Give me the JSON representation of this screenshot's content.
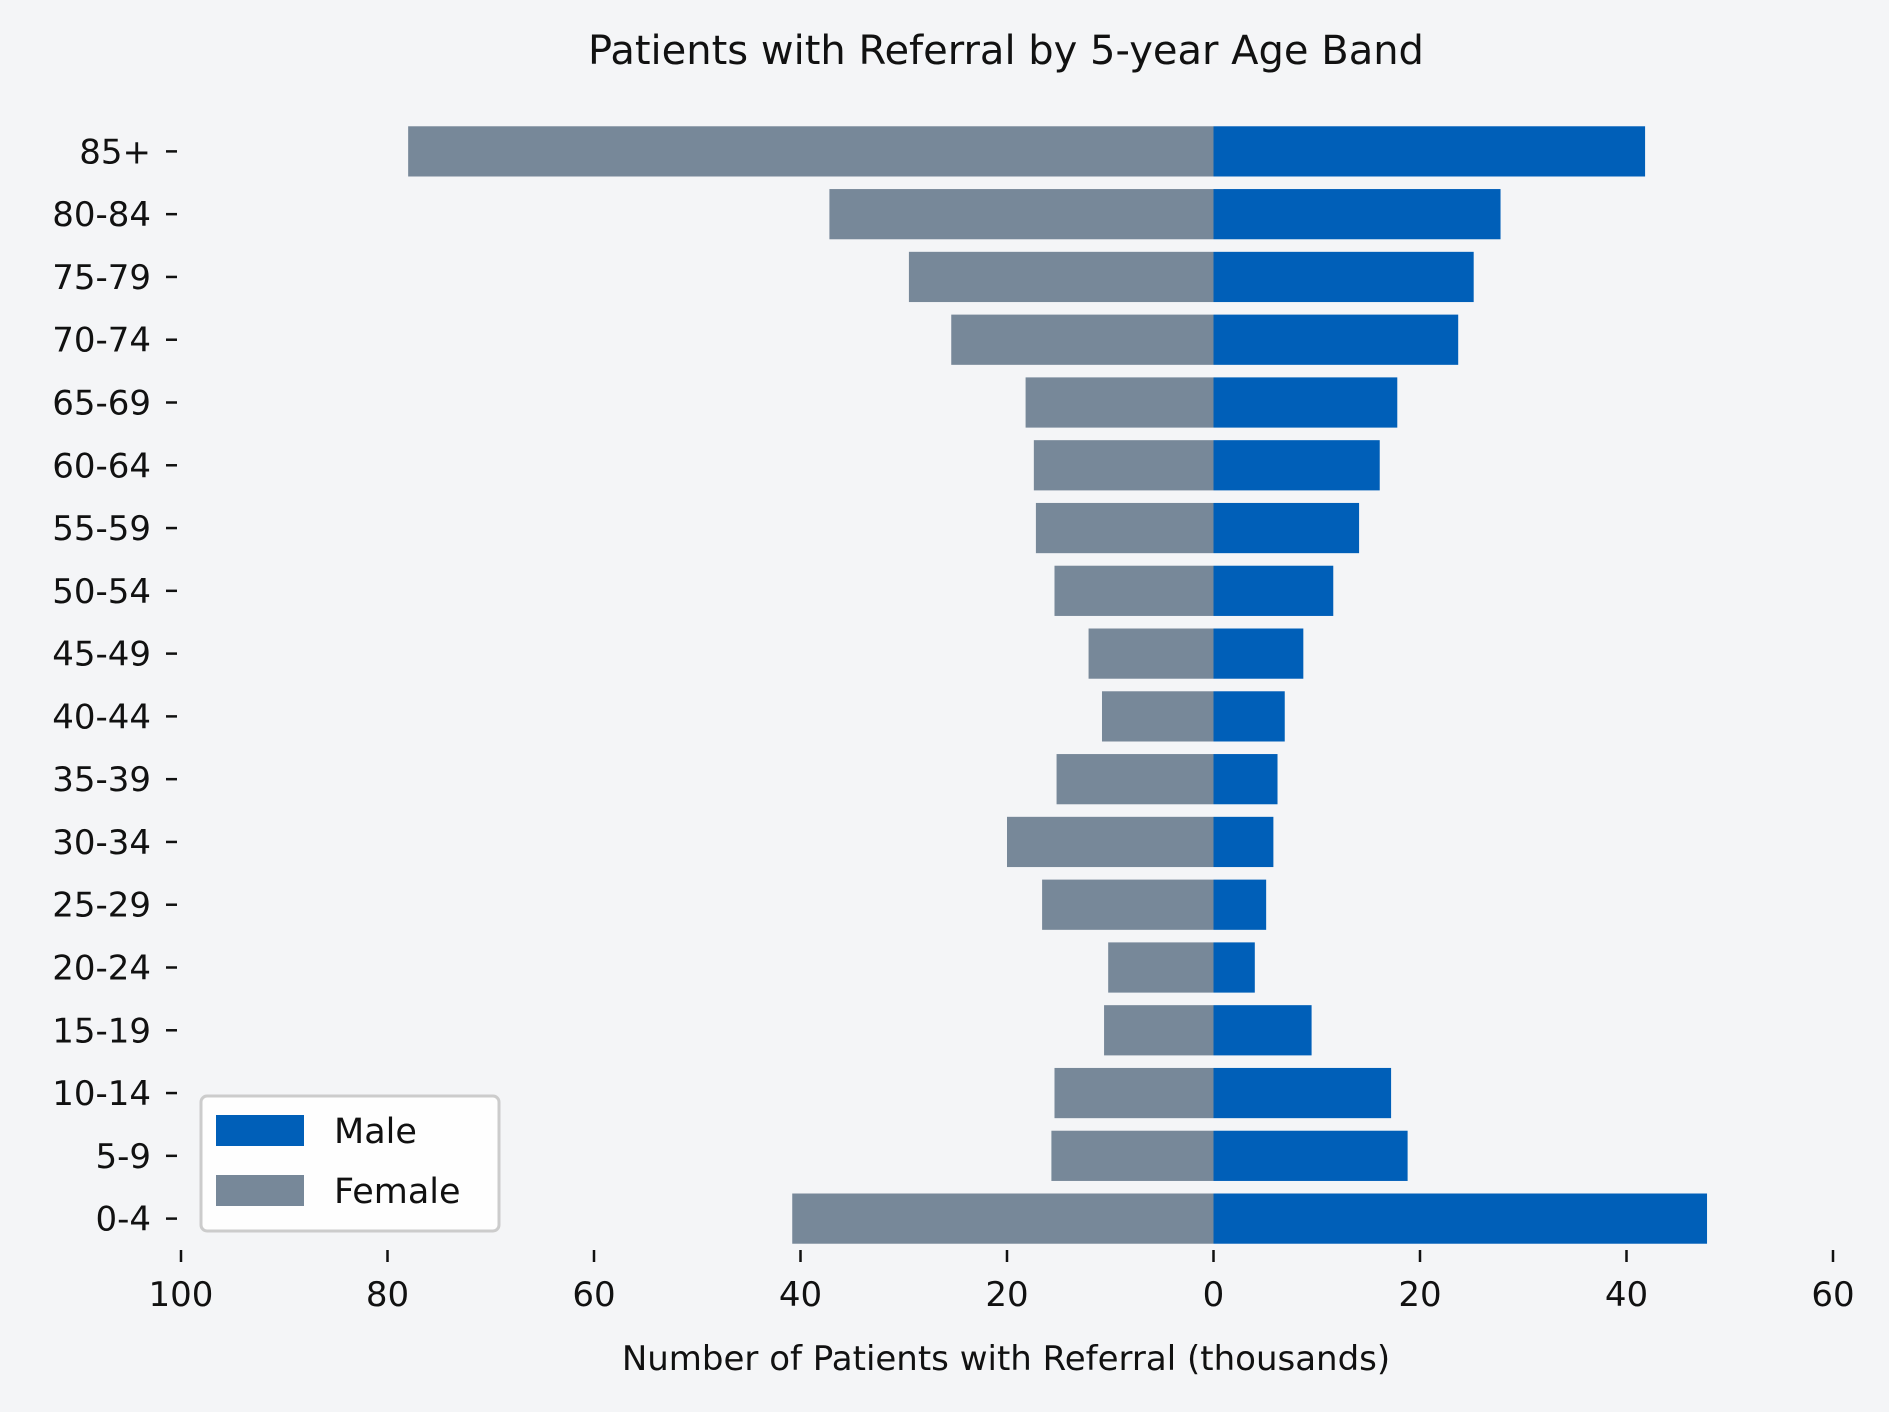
{
  "chart_data": {
    "type": "bar",
    "orientation": "horizontal-population-pyramid",
    "title": "Patients with Referral by 5-year Age Band",
    "xlabel": "Number of Patients with Referral (thousands)",
    "ylabel": "",
    "categories": [
      "0-4",
      "5-9",
      "10-14",
      "15-19",
      "20-24",
      "25-29",
      "30-34",
      "35-39",
      "40-44",
      "45-49",
      "50-54",
      "55-59",
      "60-64",
      "65-69",
      "70-74",
      "75-79",
      "80-84",
      "85+"
    ],
    "series": [
      {
        "name": "Male",
        "color": "#005fb8",
        "values": [
          47.8,
          18.8,
          17.2,
          9.5,
          4.0,
          5.1,
          5.8,
          6.2,
          6.9,
          8.7,
          11.6,
          14.1,
          16.1,
          17.8,
          23.7,
          25.2,
          27.8,
          41.8
        ]
      },
      {
        "name": "Female",
        "color": "#778899",
        "values": [
          40.8,
          15.7,
          15.4,
          10.6,
          10.2,
          16.6,
          20.0,
          15.2,
          10.8,
          12.1,
          15.4,
          17.2,
          17.4,
          18.2,
          25.4,
          29.5,
          37.2,
          78.0
        ]
      }
    ],
    "xlim": [
      -100,
      60
    ],
    "xticks": [
      -100,
      -80,
      -60,
      -40,
      -20,
      0,
      20,
      40,
      60
    ],
    "xtick_labels": [
      "100",
      "80",
      "60",
      "40",
      "20",
      "0",
      "20",
      "40",
      "60"
    ],
    "legend_position": "lower-left",
    "grid": false,
    "background": "#f4f5f7"
  }
}
